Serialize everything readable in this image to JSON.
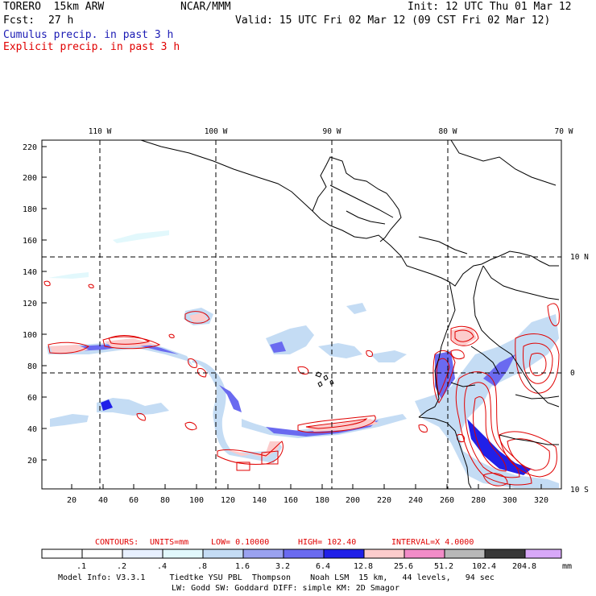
{
  "header": {
    "model": "TORERO  15km ARW",
    "org": "NCAR/MMM",
    "init": "Init: 12 UTC Thu 01 Mar 12",
    "fcst_label": "Fcst:",
    "fcst_value": "27 h",
    "valid": "Valid: 15 UTC Fri 02 Mar 12 (09 CST Fri 02 Mar 12)"
  },
  "legend_lines": {
    "cumulus": "Cumulus precip. in past 3 h",
    "explicit": "Explicit precip. in past 3 h"
  },
  "map": {
    "top_longitudes": [
      "110 W",
      "100 W",
      "90 W",
      "80 W",
      "70 W"
    ],
    "right_latitudes": [
      "10 N",
      "0",
      "10 S"
    ],
    "y_ticks": [
      "220",
      "200",
      "180",
      "160",
      "140",
      "120",
      "100",
      "80",
      "60",
      "40",
      "20"
    ],
    "x_ticks": [
      "20",
      "40",
      "60",
      "80",
      "100",
      "120",
      "140",
      "160",
      "180",
      "200",
      "220",
      "240",
      "260",
      "280",
      "300",
      "320"
    ]
  },
  "contours": {
    "label": "CONTOURS:",
    "units": "UNITS=mm",
    "low": "LOW= 0.10000",
    "high": "HIGH=  102.40",
    "interval": "INTERVAL=X  4.0000"
  },
  "colorbar": {
    "colors": [
      "#ffffff",
      "#ffffff",
      "#e8f0ff",
      "#e2f8fc",
      "#c4dcf4",
      "#9aa2f0",
      "#6a6af0",
      "#2020e8",
      "#fccccc",
      "#f28cc8",
      "#b8b8b8",
      "#383838",
      "#d8a8f8"
    ],
    "labels": [
      ".1",
      ".2",
      ".4",
      ".8",
      "1.6",
      "3.2",
      "6.4",
      "12.8",
      "25.6",
      "51.2",
      "102.4",
      "204.8"
    ],
    "unit": "mm"
  },
  "footer": {
    "line1": "Model Info: V3.3.1     Tiedtke YSU PBL  Thompson    Noah LSM  15 km,   44 levels,   94 sec",
    "line2": "LW: Godd SW: Goddard DIFF: simple KM: 2D Smagor"
  }
}
